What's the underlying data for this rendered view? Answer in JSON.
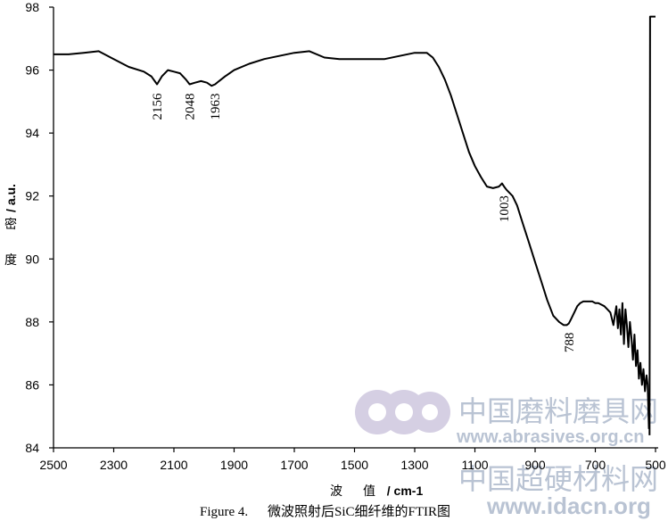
{
  "chart_data": {
    "type": "line",
    "x_axis": {
      "range": [
        2500,
        500
      ],
      "reversed": true,
      "ticks": [
        "2500",
        "2300",
        "2100",
        "1900",
        "1700",
        "1500",
        "1300",
        "1100",
        "900",
        "700",
        "500"
      ],
      "label_parts": [
        "波",
        "值",
        "/ cm-1"
      ]
    },
    "y_axis": {
      "range": [
        84,
        98
      ],
      "ticks": [
        "84",
        "86",
        "88",
        "90",
        "92",
        "94",
        "96",
        "98"
      ],
      "label_parts": [
        "/ a.u.",
        "密",
        "度"
      ]
    },
    "grid": false,
    "legend": "none",
    "line_color": "#000000",
    "series": [
      {
        "x": [
          2500,
          2450,
          2400,
          2350,
          2300,
          2250,
          2200,
          2175,
          2156,
          2140,
          2120,
          2100,
          2080,
          2060,
          2048,
          2030,
          2010,
          1990,
          1975,
          1963,
          1950,
          1930,
          1900,
          1850,
          1800,
          1750,
          1700,
          1650,
          1600,
          1550,
          1500,
          1450,
          1400,
          1350,
          1300,
          1260,
          1240,
          1220,
          1200,
          1180,
          1160,
          1140,
          1120,
          1100,
          1080,
          1060,
          1040,
          1020,
          1010,
          1003,
          995,
          985,
          975,
          960,
          940,
          920,
          900,
          880,
          860,
          840,
          820,
          805,
          795,
          788,
          780,
          770,
          760,
          750,
          740,
          730,
          720,
          710,
          700,
          690,
          680,
          670,
          660,
          650,
          645,
          640,
          635,
          630,
          625,
          620,
          615,
          610,
          605,
          600,
          595,
          590,
          585,
          580,
          575,
          570,
          565,
          560,
          555,
          550,
          545,
          540,
          535,
          530,
          526,
          522
        ],
        "y": [
          96.5,
          96.5,
          96.55,
          96.6,
          96.35,
          96.1,
          95.95,
          95.8,
          95.55,
          95.8,
          96.0,
          95.95,
          95.9,
          95.7,
          95.55,
          95.6,
          95.65,
          95.6,
          95.5,
          95.55,
          95.65,
          95.8,
          96.0,
          96.2,
          96.35,
          96.45,
          96.55,
          96.6,
          96.4,
          96.35,
          96.35,
          96.35,
          96.35,
          96.45,
          96.55,
          96.55,
          96.4,
          96.1,
          95.7,
          95.2,
          94.6,
          94.0,
          93.4,
          92.95,
          92.6,
          92.3,
          92.25,
          92.3,
          92.4,
          92.3,
          92.2,
          92.1,
          92.0,
          91.7,
          91.1,
          90.5,
          89.9,
          89.3,
          88.7,
          88.2,
          88.0,
          87.9,
          87.9,
          87.95,
          88.1,
          88.3,
          88.5,
          88.6,
          88.65,
          88.65,
          88.65,
          88.65,
          88.6,
          88.6,
          88.55,
          88.5,
          88.4,
          88.3,
          88.1,
          87.9,
          88.2,
          88.5,
          87.8,
          88.4,
          87.6,
          88.6,
          87.3,
          88.4,
          87.9,
          87.2,
          88.0,
          87.5,
          86.8,
          87.6,
          86.6,
          87.1,
          86.2,
          86.7,
          86.0,
          86.5,
          85.8,
          86.3,
          86.0,
          84.6
        ]
      },
      {
        "x": [
          520,
          518,
          516,
          500
        ],
        "y": [
          84.4,
          97.7,
          97.7,
          97.7
        ]
      }
    ],
    "annotations": [
      {
        "text": "2156",
        "x": 2156
      },
      {
        "text": "2048",
        "x": 2048
      },
      {
        "text": "1963",
        "x": 1963
      },
      {
        "text": "1003",
        "x": 1003
      },
      {
        "text": "788",
        "x": 788
      }
    ]
  },
  "caption": {
    "prefix": "Figure 4.",
    "text": "微波照射后SiC细纤维的FTIR图"
  },
  "watermarks": {
    "line1": "中国磨料磨具网",
    "line2": "www.abrasives.org.cn",
    "line3": "中国超硬材料网",
    "line4": "www.idacn.org"
  }
}
